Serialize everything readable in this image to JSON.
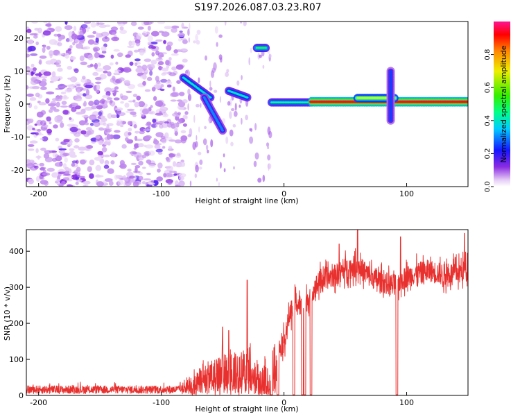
{
  "page_title": "S197.2026.087.03.23.R07",
  "colors": {
    "snr_line": "#e8312f",
    "axis": "#000000",
    "spectral_cloud": "#8a2be2"
  },
  "chart_data": [
    {
      "type": "heatmap",
      "title": "S197.2026.087.03.23.R07",
      "xlabel": "Height of straight line (km)",
      "ylabel": "Frequency (Hz)",
      "xlim": [
        -210,
        150
      ],
      "ylim": [
        -25,
        25
      ],
      "xticks": [
        -200,
        -100,
        0,
        100
      ],
      "yticks": [
        -20,
        -10,
        0,
        10,
        20
      ],
      "colorbar": {
        "label": "Normalized spectral amplitude",
        "range": [
          0,
          1
        ],
        "ticks": [
          "0.0",
          "0.2",
          "0.4",
          "0.6",
          "0.8"
        ],
        "tick_values": [
          0.0,
          0.2,
          0.4,
          0.6,
          0.8
        ]
      },
      "noise_region": {
        "x": [
          -210,
          -80
        ],
        "y": [
          -25,
          25
        ],
        "amplitude": 0.15
      },
      "features": [
        {
          "x": [
            -82,
            -60
          ],
          "y": [
            8,
            2
          ],
          "amplitude": 0.4
        },
        {
          "x": [
            -65,
            -50
          ],
          "y": [
            2,
            -8
          ],
          "amplitude": 0.3
        },
        {
          "x": [
            -45,
            -30
          ],
          "y": [
            4,
            2
          ],
          "amplitude": 0.4
        },
        {
          "x": [
            -22,
            -15
          ],
          "y": [
            17,
            17
          ],
          "amplitude": 0.5
        },
        {
          "x": [
            -10,
            22
          ],
          "y": [
            0.5,
            0.5
          ],
          "amplitude": 0.45
        },
        {
          "x": [
            22,
            150
          ],
          "y": [
            0.7,
            0.7
          ],
          "amplitude": 0.95
        },
        {
          "x": [
            60,
            90
          ],
          "y": [
            1.8,
            1.8
          ],
          "amplitude": 0.7
        },
        {
          "x": [
            87,
            87
          ],
          "y": [
            -5,
            10
          ],
          "amplitude": 0.25
        }
      ]
    },
    {
      "type": "line",
      "title": "",
      "xlabel": "Height of straight line (km)",
      "ylabel": "SNR (10 * v/v)",
      "xlim": [
        -210,
        150
      ],
      "ylim": [
        0,
        460
      ],
      "xticks": [
        -200,
        -100,
        0,
        100
      ],
      "yticks": [
        0,
        100,
        200,
        300,
        400
      ],
      "profile_x": [
        -210,
        -150,
        -90,
        -80,
        -70,
        -60,
        -50,
        -40,
        -30,
        -20,
        -12,
        -5,
        0,
        5,
        10,
        15,
        20,
        25,
        30,
        40,
        50,
        60,
        70,
        80,
        90,
        100,
        110,
        120,
        130,
        140,
        150
      ],
      "profile_y": [
        15,
        15,
        15,
        25,
        45,
        70,
        80,
        90,
        85,
        55,
        60,
        120,
        150,
        230,
        260,
        240,
        270,
        300,
        320,
        330,
        350,
        360,
        330,
        315,
        305,
        330,
        340,
        345,
        335,
        340,
        350
      ],
      "spikes": [
        {
          "x": -30,
          "y": 320
        },
        {
          "x": -45,
          "y": 180
        },
        {
          "x": -50,
          "y": 190
        },
        {
          "x": 45,
          "y": 420
        },
        {
          "x": 60,
          "y": 460
        },
        {
          "x": 95,
          "y": 440
        },
        {
          "x": 147,
          "y": 450
        }
      ],
      "dropouts_x": [
        -10,
        -5,
        8,
        15,
        17,
        22,
        92
      ]
    }
  ]
}
